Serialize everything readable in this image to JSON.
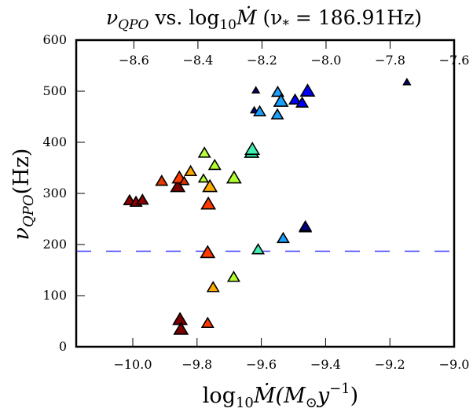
{
  "chart_data": {
    "type": "scatter",
    "title": "νQPO vs. log10 Ṁ (ν* = 186.91Hz)",
    "title_parts": {
      "nu": "ν",
      "qpo_sub": "QPO",
      "vs": " vs. log",
      "ten_sub": "10",
      "mdot": "Ṁ",
      "paren": " (ν",
      "star_sub": "*",
      "eq": " = 186.91Hz)"
    },
    "xlabel": "log10 Ṁ(M⊙ y^-1)",
    "xlabel_parts": {
      "log": "log",
      "ten_sub": "10",
      "mdot": "Ṁ",
      "open": "(M",
      "sun_sub": "⊙",
      "y": "y",
      "exp": "−1",
      "close": ")"
    },
    "ylabel": "νQPO(Hz)",
    "ylabel_parts": {
      "nu": "ν",
      "qpo_sub": "QPO",
      "hz": "(Hz)"
    },
    "xlim": [
      -10.176,
      -9.0
    ],
    "ylim": [
      0,
      600
    ],
    "xticks": [
      -10.0,
      -9.8,
      -9.6,
      -9.4,
      -9.2,
      -9.0
    ],
    "xtick_labels": [
      "−10.0",
      "−9.8",
      "−9.6",
      "−9.4",
      "−9.2",
      "−9.0"
    ],
    "yticks": [
      0,
      100,
      200,
      300,
      400,
      500,
      600
    ],
    "ytick_labels": [
      "0",
      "100",
      "200",
      "300",
      "400",
      "500",
      "600"
    ],
    "secondary_x": {
      "xlim": [
        -8.78,
        -7.6
      ],
      "ticks": [
        -8.6,
        -8.4,
        -8.2,
        -8.0,
        -7.8,
        -7.6
      ],
      "tick_labels": [
        "−8.6",
        "−8.4",
        "−8.2",
        "−8.0",
        "−7.8",
        "−7.6"
      ],
      "position": "top"
    },
    "reference_line": {
      "y": 186.91,
      "style": "dashed",
      "color": "#3a3aff",
      "label": "ν*"
    },
    "grid": false,
    "legend": "none",
    "marker": "triangle",
    "points": [
      {
        "x": -10.01,
        "y": 285,
        "color": "#8b0000",
        "size": "m"
      },
      {
        "x": -9.99,
        "y": 282,
        "color": "#8b0000",
        "size": "m"
      },
      {
        "x": -9.97,
        "y": 286,
        "color": "#8b0000",
        "size": "m"
      },
      {
        "x": -9.91,
        "y": 323,
        "color": "#e83a00",
        "size": "m"
      },
      {
        "x": -9.86,
        "y": 312,
        "color": "#7a0000",
        "size": "l"
      },
      {
        "x": -9.855,
        "y": 329,
        "color": "#ff3a00",
        "size": "l"
      },
      {
        "x": -9.84,
        "y": 323,
        "color": "#e03000",
        "size": "s"
      },
      {
        "x": -9.82,
        "y": 342,
        "color": "#ffa500",
        "size": "m"
      },
      {
        "x": -9.78,
        "y": 328,
        "color": "#b0ff30",
        "size": "s"
      },
      {
        "x": -9.777,
        "y": 378,
        "color": "#b8ff40",
        "size": "m"
      },
      {
        "x": -9.76,
        "y": 312,
        "color": "#ffaa00",
        "size": "l"
      },
      {
        "x": -9.765,
        "y": 278,
        "color": "#ff3a00",
        "size": "l"
      },
      {
        "x": -9.745,
        "y": 354,
        "color": "#b0ff30",
        "size": "m"
      },
      {
        "x": -9.685,
        "y": 329,
        "color": "#b0ff30",
        "size": "l"
      },
      {
        "x": -9.63,
        "y": 379,
        "color": "#30d090",
        "size": "l"
      },
      {
        "x": -9.628,
        "y": 385,
        "color": "#40f0b0",
        "size": "l"
      },
      {
        "x": -9.617,
        "y": 501,
        "color": "#000080",
        "size": "xs"
      },
      {
        "x": -9.622,
        "y": 462,
        "color": "#000080",
        "size": "xs"
      },
      {
        "x": -9.605,
        "y": 459,
        "color": "#1a9fff",
        "size": "m"
      },
      {
        "x": -9.549,
        "y": 497,
        "color": "#1aa0ff",
        "size": "m"
      },
      {
        "x": -9.539,
        "y": 479,
        "color": "#1aa0ff",
        "size": "l"
      },
      {
        "x": -9.55,
        "y": 453,
        "color": "#1aa0ff",
        "size": "m"
      },
      {
        "x": -9.495,
        "y": 482,
        "color": "#0000ff",
        "size": "m"
      },
      {
        "x": -9.473,
        "y": 476,
        "color": "#0000ff",
        "size": "m"
      },
      {
        "x": -9.456,
        "y": 499,
        "color": "#0000ff",
        "size": "l"
      },
      {
        "x": -9.147,
        "y": 517,
        "color": "#000080",
        "size": "xs"
      },
      {
        "x": -9.767,
        "y": 183,
        "color": "#ff3a00",
        "size": "l"
      },
      {
        "x": -9.61,
        "y": 189,
        "color": "#40f0b0",
        "size": "m"
      },
      {
        "x": -9.532,
        "y": 211,
        "color": "#1aa0ff",
        "size": "m"
      },
      {
        "x": -9.463,
        "y": 232,
        "color": "#0000ff",
        "size": "m"
      },
      {
        "x": -9.463,
        "y": 234,
        "color": "#000080",
        "size": "m"
      },
      {
        "x": -9.686,
        "y": 135,
        "color": "#b0ff30",
        "size": "m"
      },
      {
        "x": -9.75,
        "y": 115,
        "color": "#ffaa00",
        "size": "m"
      },
      {
        "x": -9.853,
        "y": 52,
        "color": "#7a0000",
        "size": "l"
      },
      {
        "x": -9.85,
        "y": 33,
        "color": "#7a0000",
        "size": "l"
      },
      {
        "x": -9.767,
        "y": 45,
        "color": "#ff3a00",
        "size": "m"
      }
    ]
  }
}
